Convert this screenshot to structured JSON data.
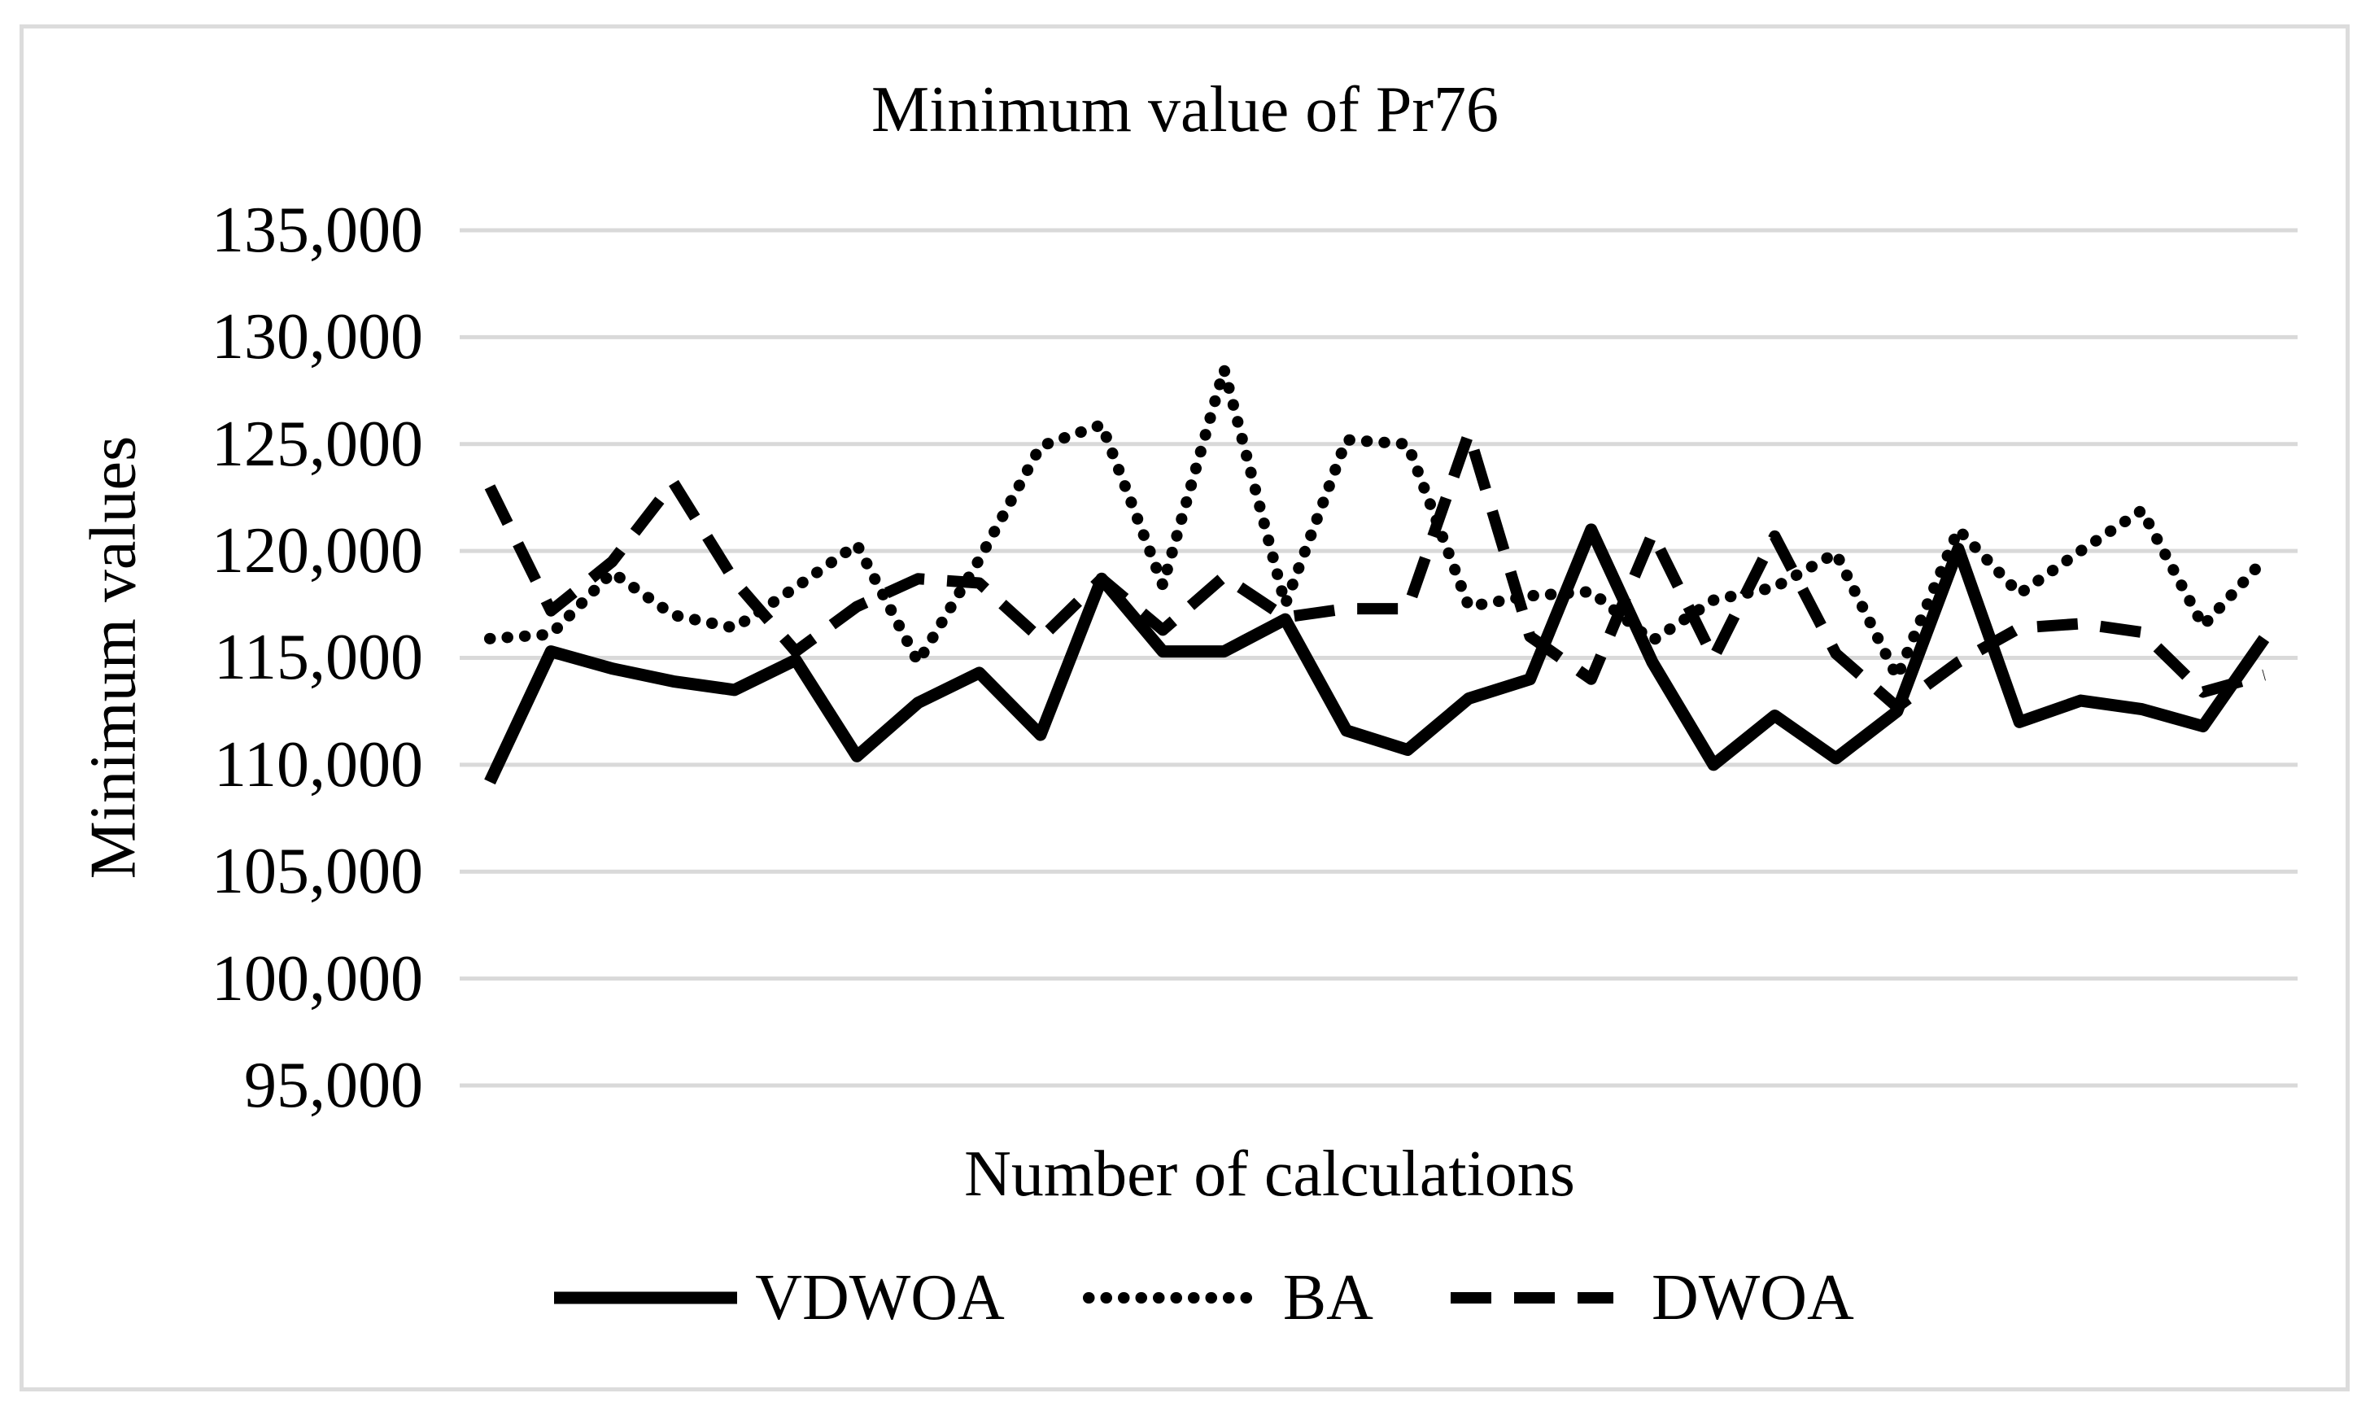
{
  "title": "Minimum value of Pr76",
  "x_axis": {
    "title": "Number of calculations"
  },
  "y_axis": {
    "title": "Minimum values",
    "ticks": [
      "135,000",
      "130,000",
      "125,000",
      "120,000",
      "115,000",
      "110,000",
      "105,000",
      "100,000",
      "95,000"
    ],
    "tick_values": [
      135000,
      130000,
      125000,
      120000,
      115000,
      110000,
      105000,
      100000,
      95000
    ]
  },
  "legend": {
    "items": [
      {
        "label": "VDWOA",
        "style": "solid"
      },
      {
        "label": "BA",
        "style": "dotted"
      },
      {
        "label": "DWOA",
        "style": "dashed"
      }
    ]
  },
  "colors": {
    "series": "#000000",
    "gridline": "#d9d9d9",
    "frame": "#dcdcdc",
    "text": "#000000",
    "background": "#ffffff"
  },
  "chart_data": {
    "type": "line",
    "title": "Minimum value of Pr76",
    "xlabel": "Number of calculations",
    "ylabel": "Minimum values",
    "ylim": [
      95000,
      135000
    ],
    "grid": "horizontal",
    "legend_position": "bottom",
    "x": [
      1,
      2,
      3,
      4,
      5,
      6,
      7,
      8,
      9,
      10,
      11,
      12,
      13,
      14,
      15,
      16,
      17,
      18,
      19,
      20,
      21,
      22,
      23,
      24,
      25,
      26,
      27,
      28,
      29,
      30
    ],
    "series": [
      {
        "name": "VDWOA",
        "line_style": "solid",
        "values": [
          109200,
          115300,
          114500,
          113900,
          113500,
          114900,
          110400,
          112900,
          114300,
          111400,
          118700,
          115300,
          115300,
          116800,
          111600,
          110700,
          113100,
          114000,
          121000,
          114800,
          110000,
          112300,
          110300,
          112500,
          120100,
          112000,
          113000,
          112600,
          111800,
          115900
        ]
      },
      {
        "name": "BA",
        "line_style": "dotted",
        "values": [
          115900,
          116100,
          119000,
          117000,
          116400,
          118300,
          120300,
          114800,
          119600,
          124900,
          125900,
          118400,
          128500,
          117500,
          125200,
          125000,
          117400,
          117900,
          118100,
          115800,
          117700,
          118300,
          119900,
          114100,
          121000,
          118000,
          120000,
          121900,
          116500,
          119600
        ]
      },
      {
        "name": "DWOA",
        "line_style": "dashed",
        "values": [
          123000,
          117200,
          119500,
          123200,
          118600,
          115300,
          117400,
          118700,
          118500,
          115900,
          118700,
          116300,
          118800,
          116900,
          117300,
          117300,
          125500,
          116000,
          114000,
          120800,
          115000,
          120700,
          115200,
          112700,
          114800,
          116400,
          116600,
          116200,
          113400,
          114200
        ]
      }
    ]
  }
}
